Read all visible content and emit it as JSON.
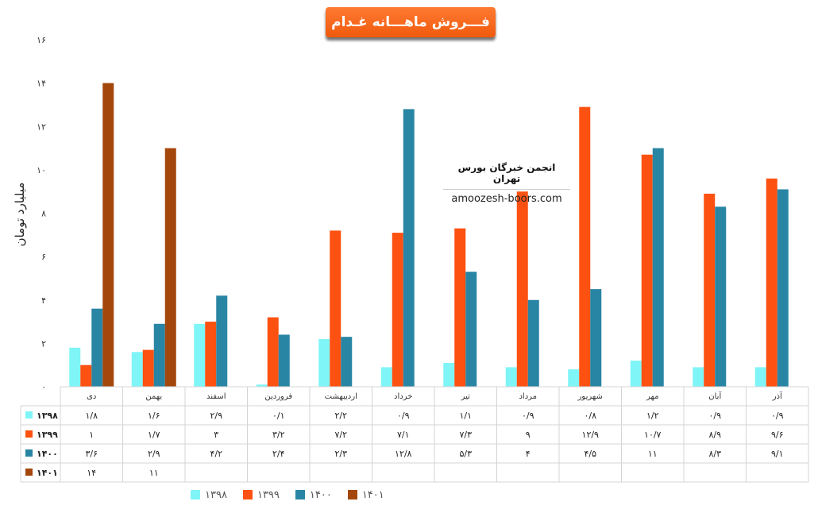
{
  "title": "فـــروش ماهـــانه غـدام",
  "watermark": {
    "title": "انجمن خبرگان بورس تهران",
    "url": "amoozesh-boors.com"
  },
  "chart_data": {
    "type": "bar",
    "title": "فـــروش ماهـــانه غـدام",
    "ylabel": "میلیارد تومان",
    "ylim": [
      0,
      16
    ],
    "yticks": [
      "۰",
      "۲",
      "۴",
      "۶",
      "۸",
      "۱۰",
      "۱۲",
      "۱۴",
      "۱۶"
    ],
    "categories": [
      "دی",
      "بهمن",
      "اسفند",
      "فروردین",
      "اردیبهشت",
      "خرداد",
      "تیر",
      "مرداد",
      "شهریور",
      "مهر",
      "آبان",
      "آذر"
    ],
    "series": [
      {
        "name": "۱۳۹۸",
        "color": "#7ff5f7",
        "values": [
          1.8,
          1.6,
          2.9,
          0.1,
          2.2,
          0.9,
          1.1,
          0.9,
          0.8,
          1.2,
          0.9,
          0.9
        ],
        "labels": [
          "۱/۸",
          "۱/۶",
          "۲/۹",
          "۰/۱",
          "۲/۲",
          "۰/۹",
          "۱/۱",
          "۰/۹",
          "۰/۸",
          "۱/۲",
          "۰/۹",
          "۰/۹"
        ]
      },
      {
        "name": "۱۳۹۹",
        "color": "#fc5110",
        "values": [
          1,
          1.7,
          3,
          3.2,
          7.2,
          7.1,
          7.3,
          9,
          12.9,
          10.7,
          8.9,
          9.6
        ],
        "labels": [
          "۱",
          "۱/۷",
          "۳",
          "۳/۲",
          "۷/۲",
          "۷/۱",
          "۷/۳",
          "۹",
          "۱۲/۹",
          "۱۰/۷",
          "۸/۹",
          "۹/۶"
        ]
      },
      {
        "name": "۱۴۰۰",
        "color": "#2985a4",
        "values": [
          3.6,
          2.9,
          4.2,
          2.4,
          2.3,
          12.8,
          5.3,
          4,
          4.5,
          11,
          8.3,
          9.1
        ],
        "labels": [
          "۳/۶",
          "۲/۹",
          "۴/۲",
          "۲/۴",
          "۲/۳",
          "۱۲/۸",
          "۵/۳",
          "۴",
          "۴/۵",
          "۱۱",
          "۸/۳",
          "۹/۱"
        ]
      },
      {
        "name": "۱۴۰۱",
        "color": "#a4470c",
        "values": [
          14,
          11,
          null,
          null,
          null,
          null,
          null,
          null,
          null,
          null,
          null,
          null
        ],
        "labels": [
          "۱۴",
          "۱۱",
          "",
          "",
          "",
          "",
          "",
          "",
          "",
          "",
          "",
          ""
        ]
      }
    ],
    "grid": false,
    "legend_placement": "bottom"
  }
}
